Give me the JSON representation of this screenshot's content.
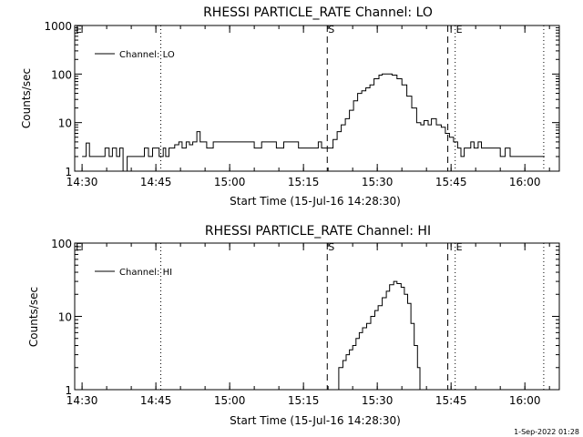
{
  "footer": {
    "stamp": "1-Sep-2022 01:28"
  },
  "chart_data": [
    {
      "type": "line",
      "title": "RHESSI PARTICLE_RATE Channel: LO",
      "xlabel": "Start Time (15-Jul-16 14:28:30)",
      "ylabel": "Counts/sec",
      "yscale": "log",
      "ylim": [
        1,
        1000
      ],
      "xlim": [
        "14:28:30",
        "16:07:00"
      ],
      "yticks": [
        "1",
        "10",
        "100",
        "1000"
      ],
      "xticks": [
        "14:30",
        "14:45",
        "15:00",
        "15:15",
        "15:30",
        "15:45",
        "16:00"
      ],
      "legend": {
        "position": "top-left",
        "entries": [
          "Channel: LO"
        ]
      },
      "markers": [
        {
          "label": "E",
          "time": "14:28:30",
          "style": "dotted"
        },
        {
          "label": "",
          "time": "14:46:00",
          "style": "dotted"
        },
        {
          "label": "S",
          "time": "15:19:50",
          "style": "dashed"
        },
        {
          "label": "",
          "time": "15:44:20",
          "style": "dashed"
        },
        {
          "label": "E",
          "time": "15:45:50",
          "style": "dotted"
        },
        {
          "label": "",
          "time": "16:03:50",
          "style": "dotted"
        }
      ],
      "series": [
        {
          "name": "Channel: LO",
          "x": [
            "14:30:00",
            "14:30:50",
            "14:31:30",
            "14:32:00",
            "14:34:00",
            "14:34:40",
            "14:35:30",
            "14:36:10",
            "14:37:00",
            "14:37:40",
            "14:38:20",
            "14:39:10",
            "14:39:50",
            "14:41:00",
            "14:42:00",
            "14:42:40",
            "14:43:30",
            "14:44:20",
            "14:45:00",
            "14:45:40",
            "14:46:30",
            "14:47:00",
            "14:47:40",
            "14:48:10",
            "14:48:50",
            "14:49:40",
            "14:50:20",
            "14:51:10",
            "14:51:50",
            "14:52:30",
            "14:53:20",
            "14:54:00",
            "14:54:30",
            "14:55:20",
            "14:56:00",
            "14:56:40",
            "14:57:40",
            "14:59:00",
            "15:00:30",
            "15:02:00",
            "15:03:30",
            "15:05:00",
            "15:06:30",
            "15:08:00",
            "15:09:30",
            "15:11:00",
            "15:12:30",
            "15:14:00",
            "15:15:30",
            "15:16:30",
            "15:17:00",
            "15:18:00",
            "15:18:40",
            "15:19:50",
            "15:21:00",
            "15:21:50",
            "15:22:40",
            "15:23:30",
            "15:24:20",
            "15:25:10",
            "15:26:00",
            "15:26:50",
            "15:27:40",
            "15:28:30",
            "15:29:20",
            "15:30:20",
            "15:31:00",
            "15:32:00",
            "15:33:00",
            "15:34:00",
            "15:35:00",
            "15:36:00",
            "15:37:00",
            "15:38:00",
            "15:38:50",
            "15:39:30",
            "15:40:20",
            "15:41:00",
            "15:42:00",
            "15:43:00",
            "15:43:50",
            "15:44:40",
            "15:45:30",
            "15:46:20",
            "15:47:00",
            "15:47:40",
            "15:48:20",
            "15:49:00",
            "15:49:40",
            "15:50:30",
            "15:51:10",
            "15:52:00",
            "15:53:00",
            "15:54:00",
            "15:55:00",
            "15:56:00",
            "15:57:00",
            "15:58:00",
            "15:59:00",
            "16:00:00",
            "16:01:00",
            "16:02:00",
            "16:03:30",
            "16:04:00"
          ],
          "y": [
            2.0,
            3.8,
            2.0,
            2.0,
            2.0,
            3.0,
            2.0,
            3.0,
            2.0,
            3.0,
            1.0,
            2.0,
            2.0,
            2.0,
            2.0,
            3.0,
            2.0,
            3.0,
            3.0,
            2.0,
            3.0,
            2.0,
            3.0,
            3.0,
            3.5,
            4.0,
            3.0,
            4.0,
            3.5,
            4.0,
            6.5,
            4.0,
            4.0,
            3.0,
            3.0,
            4.0,
            4.0,
            4.0,
            4.0,
            4.0,
            4.0,
            3.0,
            4.0,
            4.0,
            3.0,
            4.0,
            4.0,
            3.0,
            3.0,
            3.0,
            3.0,
            4.0,
            3.0,
            3.0,
            4.5,
            6.5,
            9.0,
            12.0,
            18.0,
            28.0,
            40.0,
            45.0,
            52.0,
            60.0,
            80.0,
            95.0,
            100.0,
            100.0,
            95.0,
            80.0,
            60.0,
            35.0,
            20.0,
            10.0,
            9.0,
            11.0,
            9.0,
            12.0,
            9.0,
            8.0,
            6.0,
            5.0,
            4.0,
            3.0,
            2.0,
            3.0,
            3.0,
            4.0,
            3.0,
            4.0,
            3.0,
            3.0,
            3.0,
            3.0,
            2.0,
            3.0,
            2.0,
            2.0,
            2.0,
            2.0,
            2.0,
            2.0,
            2.0,
            2.0
          ]
        }
      ]
    },
    {
      "type": "line",
      "title": "RHESSI PARTICLE_RATE Channel: HI",
      "xlabel": "Start Time (15-Jul-16 14:28:30)",
      "ylabel": "Counts/sec",
      "yscale": "log",
      "ylim": [
        1,
        100
      ],
      "xlim": [
        "14:28:30",
        "16:07:00"
      ],
      "yticks": [
        "1",
        "10",
        "100"
      ],
      "xticks": [
        "14:30",
        "14:45",
        "15:00",
        "15:15",
        "15:30",
        "15:45",
        "16:00"
      ],
      "legend": {
        "position": "top-left",
        "entries": [
          "Channel: HI"
        ]
      },
      "markers": [
        {
          "label": "E",
          "time": "14:28:30",
          "style": "dotted"
        },
        {
          "label": "",
          "time": "14:46:00",
          "style": "dotted"
        },
        {
          "label": "S",
          "time": "15:19:50",
          "style": "dashed"
        },
        {
          "label": "",
          "time": "15:44:20",
          "style": "dashed"
        },
        {
          "label": "E",
          "time": "15:45:50",
          "style": "dotted"
        },
        {
          "label": "",
          "time": "16:03:50",
          "style": "dotted"
        }
      ],
      "series": [
        {
          "name": "Channel: HI",
          "x": [
            "15:21:40",
            "15:22:10",
            "15:23:00",
            "15:23:40",
            "15:24:20",
            "15:25:00",
            "15:25:40",
            "15:26:20",
            "15:27:00",
            "15:27:50",
            "15:28:40",
            "15:29:30",
            "15:30:10",
            "15:31:00",
            "15:31:50",
            "15:32:30",
            "15:33:20",
            "15:34:00",
            "15:34:50",
            "15:35:30",
            "15:36:10",
            "15:36:50",
            "15:37:30",
            "15:38:10",
            "15:38:40"
          ],
          "y": [
            1.0,
            2.0,
            2.5,
            3.0,
            3.5,
            4.0,
            5.0,
            6.0,
            7.0,
            8.0,
            10.0,
            12.0,
            14.0,
            18.0,
            22.0,
            27.0,
            30.0,
            28.0,
            25.0,
            20.0,
            15.0,
            8.0,
            4.0,
            2.0,
            1.0
          ]
        }
      ]
    }
  ]
}
